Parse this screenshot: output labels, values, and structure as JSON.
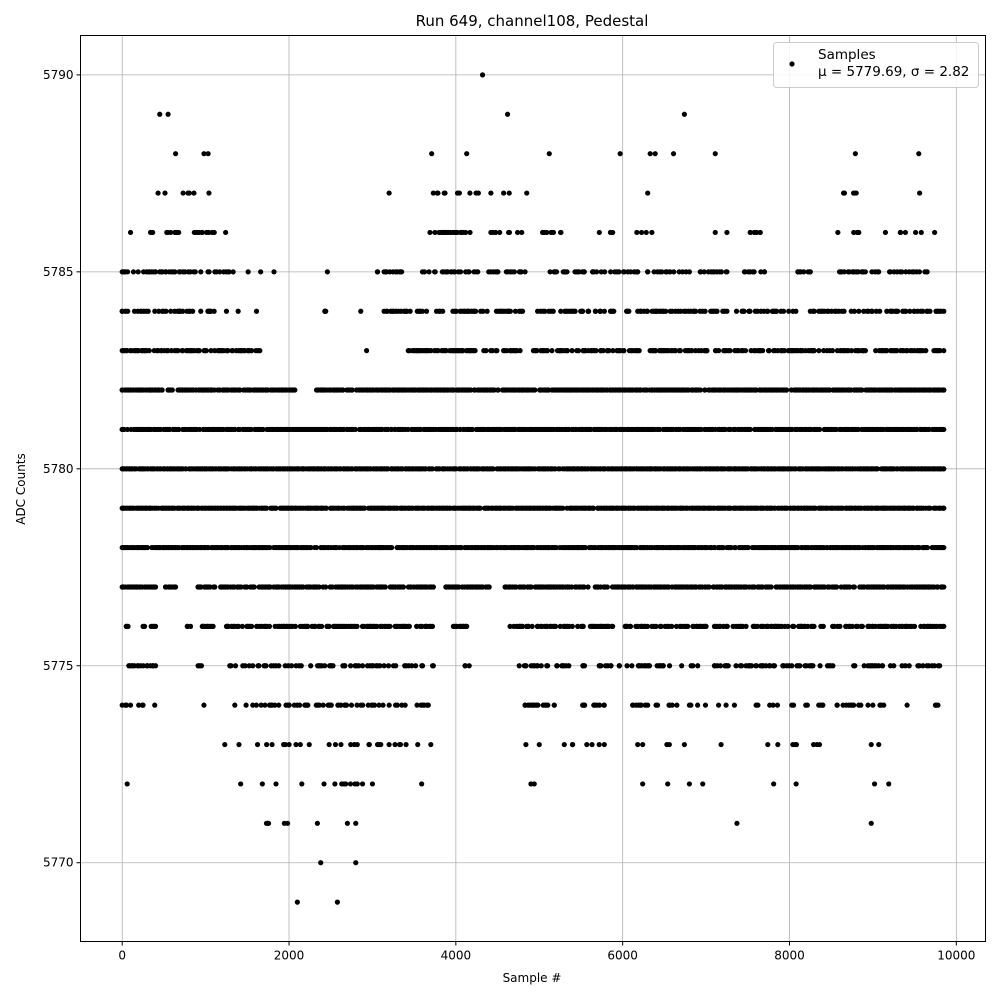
{
  "chart_data": {
    "type": "scatter",
    "title": "Run 649, channel108, Pedestal",
    "xlabel": "Sample #",
    "ylabel": "ADC Counts",
    "xlim": [
      -500,
      10350
    ],
    "ylim": [
      5768,
      5791
    ],
    "xticks": [
      0,
      2000,
      4000,
      6000,
      8000,
      10000
    ],
    "xtick_labels": [
      "0",
      "2000",
      "4000",
      "6000",
      "8000",
      "10000"
    ],
    "yticks": [
      5770,
      5775,
      5780,
      5785,
      5790
    ],
    "ytick_labels": [
      "5770",
      "5775",
      "5780",
      "5785",
      "5790"
    ],
    "grid": true,
    "legend": {
      "placement": "top-right",
      "series_name": "Samples",
      "stats_text": "μ = 5779.69, σ = 2.82"
    },
    "series": [
      {
        "name": "Samples",
        "color": "#000000",
        "marker": "circle",
        "description": "ADC counts per sample index 0-9850; dense bands 5777-5782; isolated extremes listed in points",
        "bands": [
          {
            "y": 5769,
            "segments": [
              [
                2100,
                2100
              ],
              [
                2580,
                2580
              ]
            ],
            "density": 0.5
          },
          {
            "y": 5770,
            "segments": [
              [
                2380,
                2380
              ],
              [
                2800,
                2800
              ]
            ],
            "density": 0.5
          },
          {
            "y": 5771,
            "segments": [
              [
                1730,
                2340
              ],
              [
                2700,
                2800
              ],
              [
                7370,
                7370
              ],
              [
                8980,
                8980
              ]
            ],
            "density": 0.07
          },
          {
            "y": 5772,
            "segments": [
              [
                60,
                60
              ],
              [
                1420,
                1420
              ],
              [
                1680,
                2420
              ],
              [
                2550,
                3000
              ],
              [
                3590,
                3590
              ],
              [
                4900,
                4940
              ],
              [
                6240,
                6240
              ],
              [
                6540,
                6540
              ],
              [
                6800,
                6800
              ],
              [
                6960,
                6960
              ],
              [
                7810,
                7810
              ],
              [
                8080,
                8080
              ],
              [
                9020,
                9020
              ],
              [
                9190,
                9190
              ]
            ],
            "density": 0.09
          },
          {
            "y": 5773,
            "segments": [
              [
                1230,
                1230
              ],
              [
                1400,
                3100
              ],
              [
                3200,
                3700
              ],
              [
                4840,
                5000
              ],
              [
                5300,
                5400
              ],
              [
                5570,
                5780
              ],
              [
                6180,
                6240
              ],
              [
                6530,
                6560
              ],
              [
                6740,
                6740
              ],
              [
                7180,
                7180
              ],
              [
                7740,
                7740
              ],
              [
                7860,
                7860
              ],
              [
                8040,
                8360
              ],
              [
                8980,
                9070
              ]
            ],
            "density": 0.13
          },
          {
            "y": 5774,
            "segments": [
              [
                0,
                250
              ],
              [
                390,
                390
              ],
              [
                980,
                980
              ],
              [
                1350,
                3670
              ],
              [
                4830,
                5180
              ],
              [
                5520,
                5780
              ],
              [
                6120,
                6300
              ],
              [
                6400,
                6650
              ],
              [
                6800,
                7150
              ],
              [
                7240,
                7340
              ],
              [
                7600,
                8400
              ],
              [
                8570,
                8770
              ],
              [
                8830,
                9130
              ],
              [
                9410,
                9410
              ],
              [
                9750,
                9780
              ]
            ],
            "density": 0.3
          },
          {
            "y": 5775,
            "segments": [
              [
                80,
                400
              ],
              [
                910,
                950
              ],
              [
                1290,
                3730
              ],
              [
                4110,
                4160
              ],
              [
                4760,
                5100
              ],
              [
                5210,
                5860
              ],
              [
                5960,
                6900
              ],
              [
                7100,
                7820
              ],
              [
                7920,
                8520
              ],
              [
                8770,
                9250
              ],
              [
                9350,
                9800
              ]
            ],
            "density": 0.35
          },
          {
            "y": 5776,
            "segments": [
              [
                50,
                70
              ],
              [
                250,
                400
              ],
              [
                780,
                820
              ],
              [
                960,
                1090
              ],
              [
                1250,
                3720
              ],
              [
                3970,
                4130
              ],
              [
                4650,
                5880
              ],
              [
                6030,
                7000
              ],
              [
                7100,
                9850
              ]
            ],
            "density": 0.55
          },
          {
            "y": 5777,
            "segments": [
              [
                0,
                400
              ],
              [
                520,
                640
              ],
              [
                910,
                1110
              ],
              [
                1180,
                3730
              ],
              [
                3880,
                4400
              ],
              [
                4590,
                9850
              ]
            ],
            "density": 0.75
          },
          {
            "y": 5778,
            "segments": [
              [
                0,
                9850
              ]
            ],
            "density": 0.85
          },
          {
            "y": 5779,
            "segments": [
              [
                0,
                9850
              ]
            ],
            "density": 0.9
          },
          {
            "y": 5780,
            "segments": [
              [
                0,
                9850
              ]
            ],
            "density": 0.9
          },
          {
            "y": 5781,
            "segments": [
              [
                0,
                9850
              ]
            ],
            "density": 0.85
          },
          {
            "y": 5782,
            "segments": [
              [
                0,
                2070
              ],
              [
                2330,
                9850
              ]
            ],
            "density": 0.8
          },
          {
            "y": 5783,
            "segments": [
              [
                0,
                1650
              ],
              [
                2930,
                2930
              ],
              [
                3430,
                4770
              ],
              [
                4930,
                9850
              ]
            ],
            "density": 0.55
          },
          {
            "y": 5784,
            "segments": [
              [
                0,
                1250
              ],
              [
                1390,
                1390
              ],
              [
                1610,
                1610
              ],
              [
                2430,
                2440
              ],
              [
                2860,
                2860
              ],
              [
                3140,
                4800
              ],
              [
                4980,
                9850
              ]
            ],
            "density": 0.4
          },
          {
            "y": 5785,
            "segments": [
              [
                0,
                1330
              ],
              [
                1510,
                1510
              ],
              [
                1660,
                1660
              ],
              [
                1820,
                1820
              ],
              [
                2460,
                2460
              ],
              [
                3060,
                3350
              ],
              [
                3600,
                4830
              ],
              [
                5130,
                5540
              ],
              [
                5640,
                6180
              ],
              [
                6300,
                6800
              ],
              [
                6930,
                7250
              ],
              [
                7460,
                7700
              ],
              [
                8100,
                8250
              ],
              [
                8600,
                9070
              ],
              [
                9200,
                9650
              ]
            ],
            "density": 0.4
          },
          {
            "y": 5786,
            "segments": [
              [
                100,
                100
              ],
              [
                340,
                960
              ],
              [
                1010,
                1240
              ],
              [
                3690,
                3750
              ],
              [
                3800,
                4170
              ],
              [
                4420,
                4740
              ],
              [
                4790,
                4790
              ],
              [
                5040,
                5260
              ],
              [
                5720,
                5880
              ],
              [
                6170,
                6350
              ],
              [
                7110,
                7110
              ],
              [
                7250,
                7250
              ],
              [
                7530,
                7650
              ],
              [
                8580,
                8580
              ],
              [
                8770,
                8830
              ],
              [
                9150,
                9150
              ],
              [
                9330,
                9580
              ],
              [
                9740,
                9740
              ]
            ],
            "density": 0.25
          },
          {
            "y": 5787,
            "segments": [
              [
                430,
                730
              ],
              [
                790,
                860
              ],
              [
                1040,
                1040
              ],
              [
                3200,
                3200
              ],
              [
                3730,
                3870
              ],
              [
                4020,
                4270
              ],
              [
                4420,
                4640
              ],
              [
                4850,
                4850
              ],
              [
                6300,
                6300
              ],
              [
                8650,
                8800
              ],
              [
                9560,
                9560
              ]
            ],
            "density": 0.18
          }
        ],
        "points": [
          [
            450,
            5789
          ],
          [
            550,
            5789
          ],
          [
            4620,
            5789
          ],
          [
            6740,
            5789
          ],
          [
            4320,
            5790
          ],
          [
            640,
            5788
          ],
          [
            980,
            5788
          ],
          [
            1030,
            5788
          ],
          [
            3710,
            5788
          ],
          [
            4130,
            5788
          ],
          [
            5120,
            5788
          ],
          [
            5970,
            5788
          ],
          [
            6330,
            5788
          ],
          [
            6390,
            5788
          ],
          [
            6610,
            5788
          ],
          [
            7110,
            5788
          ],
          [
            8790,
            5788
          ],
          [
            9550,
            5788
          ]
        ]
      }
    ]
  }
}
